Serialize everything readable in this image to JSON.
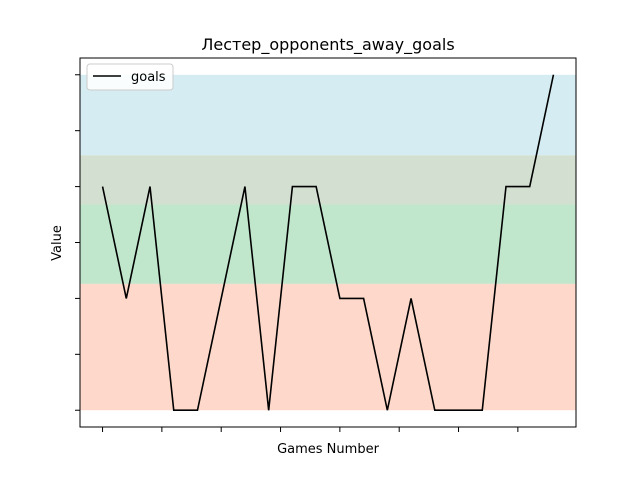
{
  "chart_data": {
    "type": "line",
    "title": "Лестер_opponents_away_goals",
    "xlabel": "Games Number",
    "ylabel": "Value",
    "x": [
      1,
      2,
      3,
      4,
      5,
      6,
      7,
      8,
      9,
      10,
      11,
      12,
      13,
      14,
      15,
      16,
      17,
      18,
      19,
      20
    ],
    "series": [
      {
        "name": "goals",
        "color": "#000000",
        "values": [
          2,
          1,
          2,
          0,
          0,
          1,
          2,
          0,
          2,
          2,
          1,
          1,
          0,
          1,
          0,
          0,
          0,
          2,
          2,
          3
        ]
      }
    ],
    "xlim": [
      0.05,
      20.95
    ],
    "ylim": [
      -0.15,
      3.15
    ],
    "x_ticks": [
      1,
      3.5,
      6,
      8.5,
      11,
      13.5,
      16,
      18.5
    ],
    "y_ticks": [
      0,
      0.5,
      1,
      1.5,
      2,
      2.5,
      3
    ],
    "bands": [
      {
        "from": 3.0,
        "to": 2.28,
        "color": "#d5edf2"
      },
      {
        "from": 2.28,
        "to": 1.84,
        "color": "#d3e0d1"
      },
      {
        "from": 1.84,
        "to": 1.13,
        "color": "#c0e6cc"
      },
      {
        "from": 1.13,
        "to": 0.0,
        "color": "#fed9cb"
      }
    ],
    "legend_position": "top-left",
    "grid": false
  }
}
